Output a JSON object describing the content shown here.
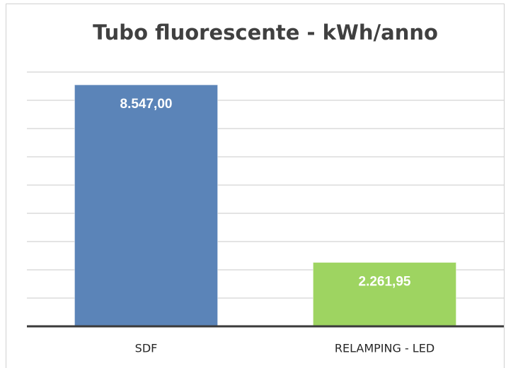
{
  "chart_data": {
    "type": "bar",
    "title": "Tubo fluorescente - kWh/anno",
    "categories": [
      "SDF",
      "RELAMPING - LED"
    ],
    "values": [
      8547,
      2261.95
    ],
    "value_labels": [
      "8.547,00",
      "2.261,95"
    ],
    "colors": [
      "#5b84b8",
      "#9ed461"
    ],
    "ylim": [
      0,
      9000
    ],
    "yticks": [
      0,
      1000,
      2000,
      3000,
      4000,
      5000,
      6000,
      7000,
      8000,
      9000
    ],
    "grid": true
  }
}
